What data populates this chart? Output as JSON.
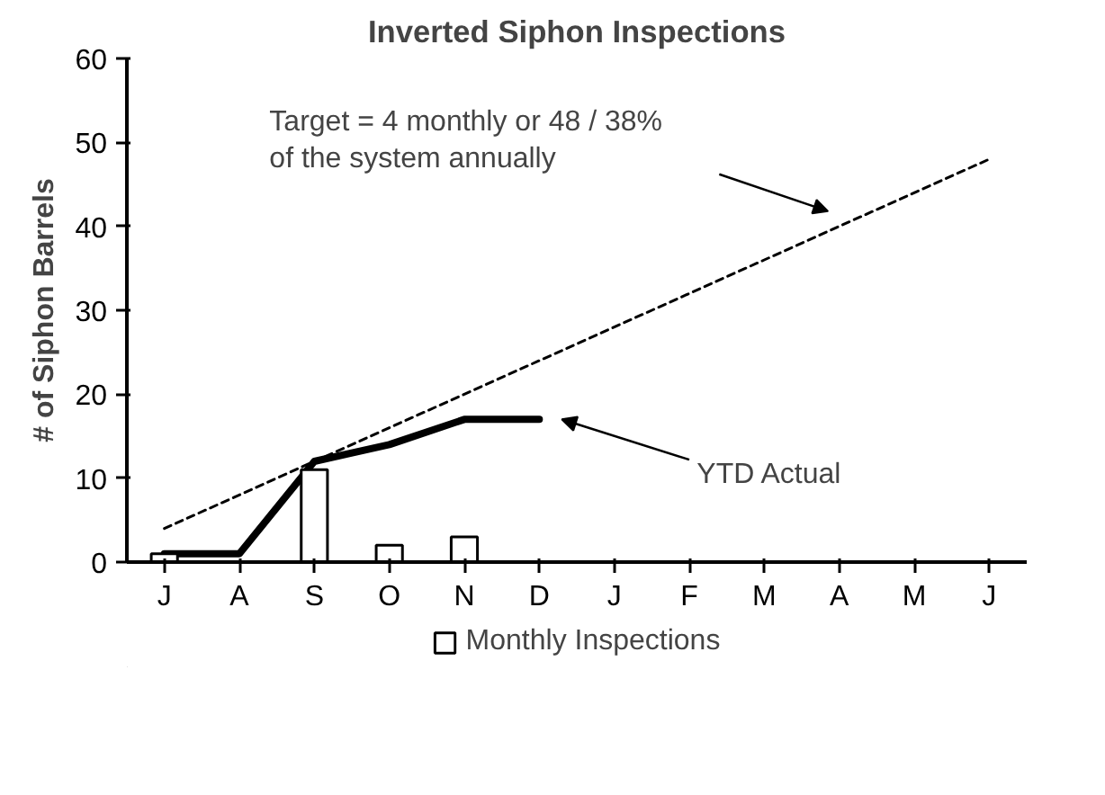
{
  "chart_data": {
    "type": "bar",
    "title": "Inverted Siphon Inspections",
    "ylabel": "# of Siphon Barrels",
    "categories": [
      "J",
      "A",
      "S",
      "O",
      "N",
      "D",
      "J",
      "F",
      "M",
      "A",
      "M",
      "J"
    ],
    "series": [
      {
        "name": "Monthly Inspections",
        "color": "#ffffff",
        "values": [
          1,
          null,
          11,
          2,
          3,
          null,
          null,
          null,
          null,
          null,
          null,
          null
        ]
      },
      {
        "type": "line",
        "color": "#000000",
        "line_style": "solid",
        "values": [
          1,
          1,
          12,
          14,
          17,
          17,
          null,
          null,
          null,
          null,
          null,
          null
        ]
      },
      {
        "type": "line",
        "color": "#000000",
        "line_style": "dashed",
        "values": [
          4,
          8,
          12,
          16,
          20,
          24,
          28,
          32,
          36,
          40,
          44,
          48
        ]
      }
    ],
    "ylim": [
      0,
      60
    ],
    "yticks": [
      0,
      10,
      20,
      30,
      40,
      50,
      60
    ],
    "grid": false,
    "legend": "bottom",
    "marker": "none",
    "annotations": [
      "Target = 4 monthly or 48 / 38%\nof the system annually",
      "YTD Actual"
    ]
  }
}
